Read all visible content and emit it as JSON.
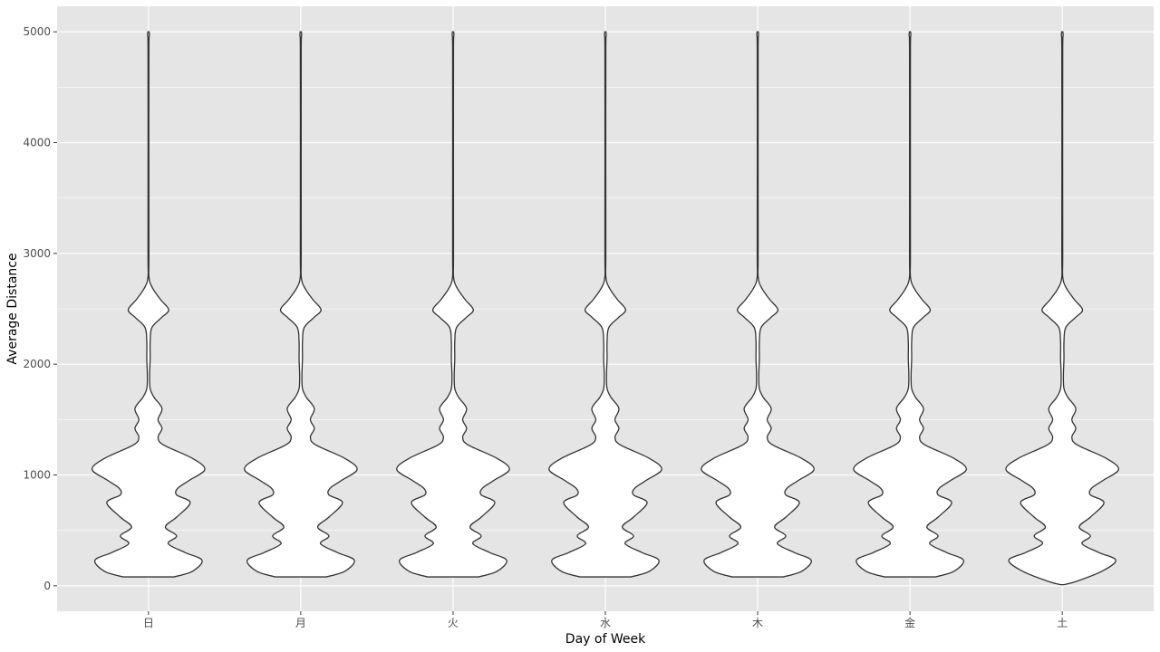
{
  "chart_data": {
    "type": "violin",
    "xlabel": "Day of Week",
    "ylabel": "Average Distance",
    "categories": [
      "日",
      "月",
      "火",
      "水",
      "木",
      "金",
      "土"
    ],
    "ylim": [
      -230,
      5230
    ],
    "yticks": [
      0,
      1000,
      2000,
      3000,
      4000,
      5000
    ],
    "grid": true,
    "legend": "none",
    "colors": {
      "panel": "#e5e5e5",
      "grid": "#ffffff",
      "violin_fill": "#ffffff",
      "violin_stroke": "#333333"
    },
    "violins": [
      {
        "category": "日",
        "min": 80,
        "max": 5000,
        "profile": [
          [
            80,
            0.45
          ],
          [
            130,
            0.78
          ],
          [
            230,
            0.95
          ],
          [
            300,
            0.65
          ],
          [
            380,
            0.35
          ],
          [
            450,
            0.5
          ],
          [
            530,
            0.3
          ],
          [
            620,
            0.5
          ],
          [
            750,
            0.74
          ],
          [
            820,
            0.5
          ],
          [
            880,
            0.52
          ],
          [
            950,
            0.72
          ],
          [
            1050,
            1.0
          ],
          [
            1150,
            0.78
          ],
          [
            1270,
            0.27
          ],
          [
            1340,
            0.17
          ],
          [
            1420,
            0.24
          ],
          [
            1500,
            0.17
          ],
          [
            1600,
            0.24
          ],
          [
            1700,
            0.1
          ],
          [
            1780,
            0.03
          ],
          [
            1900,
            0.02
          ],
          [
            2050,
            0.03
          ],
          [
            2200,
            0.03
          ],
          [
            2330,
            0.06
          ],
          [
            2420,
            0.23
          ],
          [
            2490,
            0.36
          ],
          [
            2580,
            0.22
          ],
          [
            2680,
            0.08
          ],
          [
            2780,
            0.01
          ],
          [
            3000,
            0.008
          ],
          [
            4000,
            0.007
          ],
          [
            4850,
            0.008
          ],
          [
            4970,
            0.015
          ],
          [
            5000,
            0.01
          ]
        ]
      },
      {
        "category": "月",
        "min": 80,
        "max": 5000,
        "profile": [
          [
            80,
            0.45
          ],
          [
            130,
            0.78
          ],
          [
            230,
            0.95
          ],
          [
            300,
            0.65
          ],
          [
            380,
            0.35
          ],
          [
            450,
            0.5
          ],
          [
            530,
            0.3
          ],
          [
            620,
            0.5
          ],
          [
            750,
            0.74
          ],
          [
            820,
            0.5
          ],
          [
            880,
            0.52
          ],
          [
            950,
            0.72
          ],
          [
            1050,
            1.0
          ],
          [
            1150,
            0.78
          ],
          [
            1270,
            0.27
          ],
          [
            1340,
            0.17
          ],
          [
            1420,
            0.24
          ],
          [
            1500,
            0.17
          ],
          [
            1600,
            0.24
          ],
          [
            1700,
            0.1
          ],
          [
            1780,
            0.03
          ],
          [
            1900,
            0.02
          ],
          [
            2050,
            0.03
          ],
          [
            2200,
            0.03
          ],
          [
            2330,
            0.06
          ],
          [
            2420,
            0.23
          ],
          [
            2490,
            0.36
          ],
          [
            2580,
            0.22
          ],
          [
            2680,
            0.08
          ],
          [
            2780,
            0.01
          ],
          [
            3000,
            0.008
          ],
          [
            4000,
            0.007
          ],
          [
            4850,
            0.008
          ],
          [
            4970,
            0.015
          ],
          [
            5000,
            0.01
          ]
        ]
      },
      {
        "category": "火",
        "min": 80,
        "max": 5000,
        "profile": [
          [
            80,
            0.45
          ],
          [
            130,
            0.78
          ],
          [
            230,
            0.95
          ],
          [
            300,
            0.65
          ],
          [
            380,
            0.35
          ],
          [
            450,
            0.5
          ],
          [
            530,
            0.3
          ],
          [
            620,
            0.5
          ],
          [
            750,
            0.74
          ],
          [
            820,
            0.5
          ],
          [
            880,
            0.52
          ],
          [
            950,
            0.72
          ],
          [
            1050,
            1.0
          ],
          [
            1150,
            0.78
          ],
          [
            1270,
            0.27
          ],
          [
            1340,
            0.17
          ],
          [
            1420,
            0.24
          ],
          [
            1500,
            0.17
          ],
          [
            1600,
            0.24
          ],
          [
            1700,
            0.1
          ],
          [
            1780,
            0.03
          ],
          [
            1900,
            0.02
          ],
          [
            2050,
            0.03
          ],
          [
            2200,
            0.03
          ],
          [
            2330,
            0.06
          ],
          [
            2420,
            0.23
          ],
          [
            2490,
            0.36
          ],
          [
            2580,
            0.22
          ],
          [
            2680,
            0.08
          ],
          [
            2780,
            0.01
          ],
          [
            3000,
            0.008
          ],
          [
            4000,
            0.007
          ],
          [
            4850,
            0.008
          ],
          [
            4970,
            0.015
          ],
          [
            5000,
            0.01
          ]
        ]
      },
      {
        "category": "水",
        "min": 80,
        "max": 5000,
        "profile": [
          [
            80,
            0.45
          ],
          [
            130,
            0.78
          ],
          [
            230,
            0.95
          ],
          [
            300,
            0.65
          ],
          [
            380,
            0.35
          ],
          [
            450,
            0.5
          ],
          [
            530,
            0.3
          ],
          [
            620,
            0.5
          ],
          [
            750,
            0.74
          ],
          [
            820,
            0.5
          ],
          [
            880,
            0.52
          ],
          [
            950,
            0.72
          ],
          [
            1050,
            1.0
          ],
          [
            1150,
            0.78
          ],
          [
            1270,
            0.27
          ],
          [
            1340,
            0.17
          ],
          [
            1420,
            0.24
          ],
          [
            1500,
            0.17
          ],
          [
            1600,
            0.24
          ],
          [
            1700,
            0.1
          ],
          [
            1780,
            0.03
          ],
          [
            1900,
            0.02
          ],
          [
            2050,
            0.03
          ],
          [
            2200,
            0.03
          ],
          [
            2330,
            0.06
          ],
          [
            2420,
            0.23
          ],
          [
            2490,
            0.36
          ],
          [
            2580,
            0.22
          ],
          [
            2680,
            0.08
          ],
          [
            2780,
            0.01
          ],
          [
            3000,
            0.008
          ],
          [
            4000,
            0.007
          ],
          [
            4850,
            0.008
          ],
          [
            4970,
            0.015
          ],
          [
            5000,
            0.01
          ]
        ]
      },
      {
        "category": "木",
        "min": 80,
        "max": 5000,
        "profile": [
          [
            80,
            0.45
          ],
          [
            130,
            0.78
          ],
          [
            230,
            0.95
          ],
          [
            300,
            0.65
          ],
          [
            380,
            0.35
          ],
          [
            450,
            0.5
          ],
          [
            530,
            0.3
          ],
          [
            620,
            0.5
          ],
          [
            750,
            0.74
          ],
          [
            820,
            0.5
          ],
          [
            880,
            0.52
          ],
          [
            950,
            0.72
          ],
          [
            1050,
            1.0
          ],
          [
            1150,
            0.78
          ],
          [
            1270,
            0.27
          ],
          [
            1340,
            0.17
          ],
          [
            1420,
            0.24
          ],
          [
            1500,
            0.17
          ],
          [
            1600,
            0.24
          ],
          [
            1700,
            0.1
          ],
          [
            1780,
            0.03
          ],
          [
            1900,
            0.02
          ],
          [
            2050,
            0.03
          ],
          [
            2200,
            0.03
          ],
          [
            2330,
            0.06
          ],
          [
            2420,
            0.23
          ],
          [
            2490,
            0.36
          ],
          [
            2580,
            0.22
          ],
          [
            2680,
            0.08
          ],
          [
            2780,
            0.01
          ],
          [
            3000,
            0.008
          ],
          [
            4000,
            0.007
          ],
          [
            4850,
            0.008
          ],
          [
            4970,
            0.015
          ],
          [
            5000,
            0.01
          ]
        ]
      },
      {
        "category": "金",
        "min": 80,
        "max": 5000,
        "profile": [
          [
            80,
            0.45
          ],
          [
            130,
            0.78
          ],
          [
            230,
            0.95
          ],
          [
            300,
            0.65
          ],
          [
            380,
            0.35
          ],
          [
            450,
            0.5
          ],
          [
            530,
            0.3
          ],
          [
            620,
            0.5
          ],
          [
            750,
            0.74
          ],
          [
            820,
            0.5
          ],
          [
            880,
            0.52
          ],
          [
            950,
            0.72
          ],
          [
            1050,
            1.0
          ],
          [
            1150,
            0.78
          ],
          [
            1270,
            0.27
          ],
          [
            1340,
            0.17
          ],
          [
            1420,
            0.24
          ],
          [
            1500,
            0.17
          ],
          [
            1600,
            0.24
          ],
          [
            1700,
            0.1
          ],
          [
            1780,
            0.03
          ],
          [
            1900,
            0.02
          ],
          [
            2050,
            0.03
          ],
          [
            2200,
            0.03
          ],
          [
            2330,
            0.06
          ],
          [
            2420,
            0.23
          ],
          [
            2490,
            0.36
          ],
          [
            2580,
            0.22
          ],
          [
            2680,
            0.08
          ],
          [
            2780,
            0.01
          ],
          [
            3000,
            0.008
          ],
          [
            4000,
            0.007
          ],
          [
            4850,
            0.008
          ],
          [
            4970,
            0.015
          ],
          [
            5000,
            0.01
          ]
        ]
      },
      {
        "category": "土",
        "min": 10,
        "max": 5000,
        "profile": [
          [
            10,
            0.03
          ],
          [
            40,
            0.25
          ],
          [
            130,
            0.7
          ],
          [
            230,
            0.95
          ],
          [
            300,
            0.65
          ],
          [
            380,
            0.35
          ],
          [
            450,
            0.5
          ],
          [
            530,
            0.3
          ],
          [
            620,
            0.5
          ],
          [
            750,
            0.74
          ],
          [
            820,
            0.5
          ],
          [
            880,
            0.52
          ],
          [
            950,
            0.72
          ],
          [
            1050,
            1.0
          ],
          [
            1150,
            0.78
          ],
          [
            1270,
            0.27
          ],
          [
            1340,
            0.17
          ],
          [
            1420,
            0.24
          ],
          [
            1500,
            0.17
          ],
          [
            1600,
            0.24
          ],
          [
            1700,
            0.1
          ],
          [
            1780,
            0.03
          ],
          [
            1900,
            0.02
          ],
          [
            2050,
            0.03
          ],
          [
            2200,
            0.03
          ],
          [
            2330,
            0.06
          ],
          [
            2420,
            0.23
          ],
          [
            2490,
            0.36
          ],
          [
            2580,
            0.22
          ],
          [
            2680,
            0.08
          ],
          [
            2780,
            0.01
          ],
          [
            3000,
            0.008
          ],
          [
            4000,
            0.007
          ],
          [
            4850,
            0.008
          ],
          [
            4970,
            0.015
          ],
          [
            5000,
            0.01
          ]
        ]
      }
    ]
  }
}
